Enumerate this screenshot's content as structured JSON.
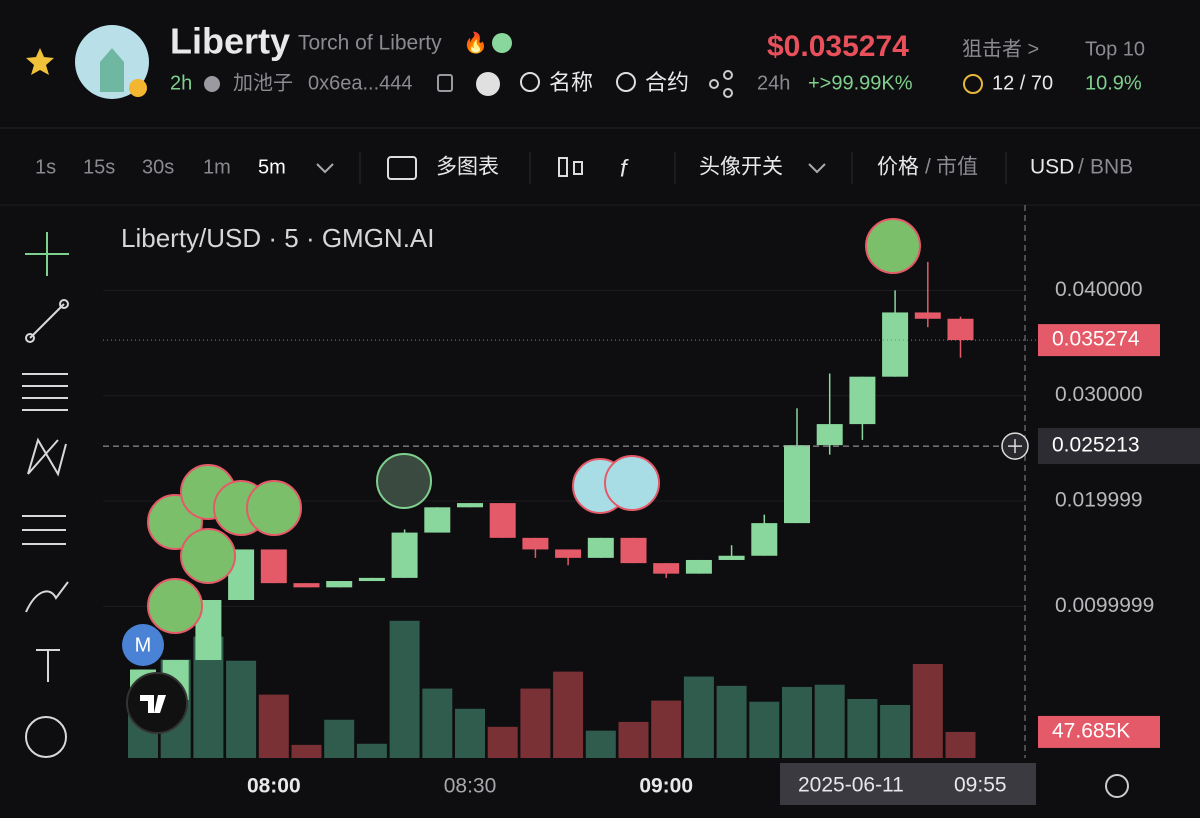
{
  "header": {
    "name": "Liberty",
    "full_name": "Torch of Liberty",
    "age": "2h",
    "pool": "加池子",
    "address": "0x6ea...444",
    "search_name": "名称",
    "search_contract": "合约",
    "price": "$0.035274",
    "period": "24h",
    "change": "+>99.99K%",
    "snipers_label": "狙击者 >",
    "snipers": "12 / 70",
    "top10_label": "Top 10",
    "top10": "10.9%"
  },
  "toolbar": {
    "intervals": [
      "1s",
      "15s",
      "30s",
      "1m",
      "5m"
    ],
    "multi_chart": "多图表",
    "avatar_toggle": "头像开关",
    "price": "价格",
    "separator": "/",
    "market_cap": "市值",
    "usd": "USD",
    "bnb": "BNB"
  },
  "chart": {
    "type": "candlestick",
    "title": "Liberty/USD · 5 · GMGN.AI",
    "categories": [
      null,
      null,
      null,
      null,
      "08:00",
      null,
      null,
      null,
      null,
      null,
      "08:30",
      null,
      null,
      null,
      null,
      null,
      "09:00",
      null,
      null,
      null,
      null,
      null,
      null,
      null,
      null,
      null
    ],
    "open": [
      0.002,
      0.0011,
      0.0049,
      0.0106,
      0.0154,
      0.0122,
      0.0118,
      0.0124,
      0.0127,
      0.017,
      0.0194,
      0.0198,
      0.0165,
      0.0154,
      0.0146,
      0.0165,
      0.0141,
      0.0131,
      0.0144,
      0.0148,
      0.0179,
      0.0253,
      0.0273,
      0.0318,
      0.0379,
      0.0373
    ],
    "high": [
      0.004,
      0.0049,
      0.0106,
      0.0154,
      0.0154,
      0.0122,
      0.0124,
      0.0127,
      0.0173,
      0.0194,
      0.0198,
      0.0198,
      0.0165,
      0.0154,
      0.0165,
      0.0165,
      0.0141,
      0.0144,
      0.0158,
      0.0187,
      0.0288,
      0.0321,
      0.0318,
      0.04,
      0.0427,
      0.0375
    ],
    "low": [
      0.002,
      0.0011,
      0.0049,
      0.0106,
      0.0122,
      0.0118,
      0.0118,
      0.0124,
      0.0127,
      0.017,
      0.0194,
      0.0165,
      0.0146,
      0.0139,
      0.0146,
      0.0141,
      0.0127,
      0.0131,
      0.0144,
      0.0148,
      0.0179,
      0.0244,
      0.0258,
      0.0318,
      0.0365,
      0.0336
    ],
    "close": [
      0.004,
      0.0049,
      0.0106,
      0.0154,
      0.0122,
      0.0118,
      0.0124,
      0.0127,
      0.017,
      0.0194,
      0.0198,
      0.0165,
      0.0154,
      0.0146,
      0.0165,
      0.0141,
      0.0131,
      0.0144,
      0.0148,
      0.0179,
      0.0253,
      0.0273,
      0.0318,
      0.0379,
      0.0373,
      0.035274
    ],
    "up_color": "#8ad79d",
    "down_color": "#e55a68",
    "volume": [
      84,
      180,
      222,
      178,
      116,
      24,
      70,
      26,
      251,
      127,
      90,
      57,
      127,
      158,
      50,
      66,
      105,
      149,
      132,
      103,
      130,
      134,
      108,
      97,
      172,
      47.685
    ],
    "volume_value_labels": [
      null,
      null,
      null,
      null,
      null,
      null,
      null,
      null,
      null,
      null,
      null,
      null,
      null,
      null,
      null,
      null,
      null,
      null,
      null,
      null,
      null,
      null,
      null,
      null,
      null,
      "47.685K"
    ],
    "volume_ylim": [
      0,
      300
    ],
    "volume_up_color": "#2f5c4c",
    "volume_down_color": "#7a3135",
    "ylim": [
      -0.0044,
      0.0481
    ],
    "yticks": [
      {
        "value": 0.04,
        "label": "0.040000"
      },
      {
        "value": 0.03,
        "label": "0.030000"
      },
      0.019999,
      0.0099999
    ],
    "grid": true,
    "crosshair": {
      "price": 0.025213,
      "date": "2025-06-11",
      "time": "09:55"
    },
    "markers": [
      "M"
    ]
  }
}
